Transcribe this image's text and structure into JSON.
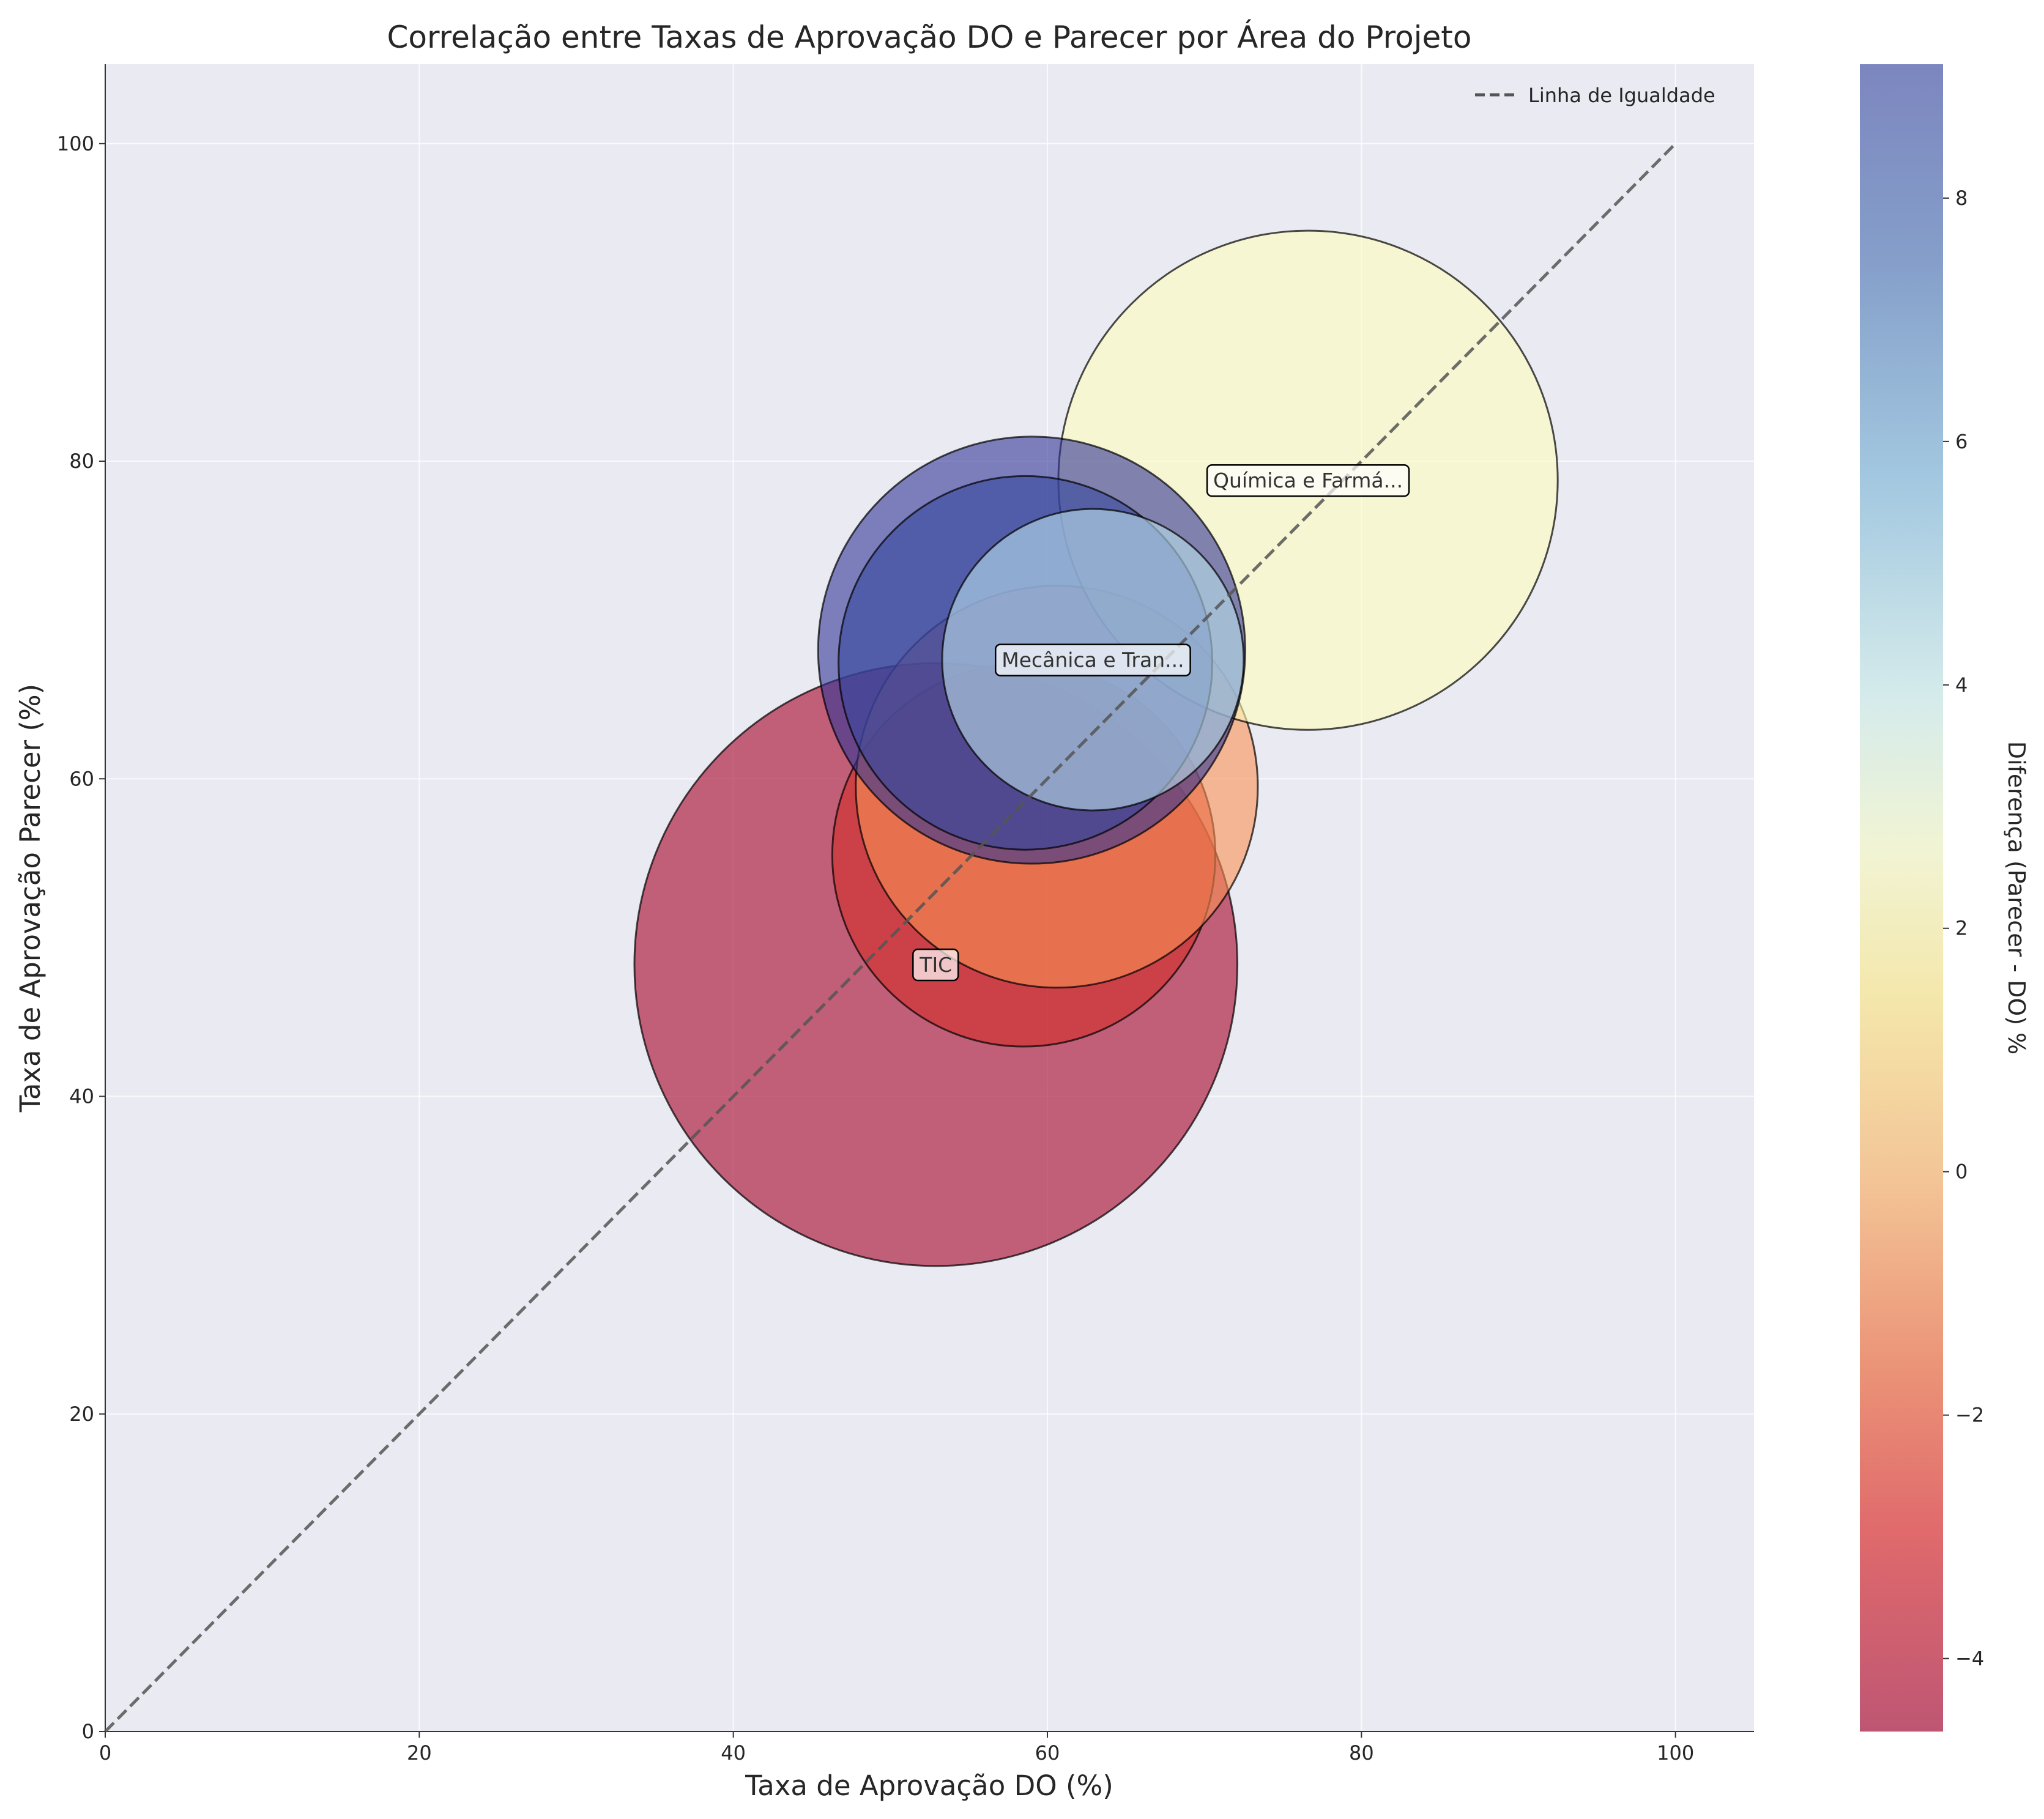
{
  "chart_data": {
    "type": "scatter",
    "title": "Correlação entre Taxas de Aprovação DO e Parecer por Área do Projeto",
    "xlabel": "Taxa de Aprovação DO (%)",
    "ylabel": "Taxa de Aprovação Parecer (%)",
    "xlim": [
      0,
      105
    ],
    "ylim": [
      0,
      105
    ],
    "xticks": [
      "0",
      "20",
      "40",
      "60",
      "80",
      "100"
    ],
    "yticks": [
      "0",
      "20",
      "40",
      "60",
      "80",
      "100"
    ],
    "grid": true,
    "legend": {
      "placement": "top-right",
      "entries": [
        "Linha de Igualdade"
      ]
    },
    "reference_line": {
      "name": "Linha de Igualdade",
      "x": [
        0,
        100
      ],
      "y": [
        0,
        100
      ]
    },
    "colorbar": {
      "label": "Diferença (Parecer - DO) %",
      "min": -4.6,
      "max": 9.1,
      "ticks": [
        "−4",
        "−2",
        "0",
        "2",
        "4",
        "6",
        "8"
      ],
      "tick_values": [
        -4,
        -2,
        0,
        2,
        4,
        6,
        8
      ]
    },
    "points": [
      {
        "x": 52.9,
        "y": 48.3,
        "radius": 19.2,
        "diff": -4.6,
        "label": "TIC"
      },
      {
        "x": 58.5,
        "y": 55.2,
        "radius": 12.2,
        "diff": -3.3,
        "label": ""
      },
      {
        "x": 60.6,
        "y": 59.5,
        "radius": 12.8,
        "diff": -1.1,
        "label": ""
      },
      {
        "x": 76.6,
        "y": 78.8,
        "radius": 15.9,
        "diff": 2.2,
        "label": "Química e Farmá..."
      },
      {
        "x": 59.0,
        "y": 68.1,
        "radius": 13.6,
        "diff": 9.1,
        "label": ""
      },
      {
        "x": 58.6,
        "y": 67.3,
        "radius": 11.9,
        "diff": 8.7,
        "label": ""
      },
      {
        "x": 62.9,
        "y": 67.5,
        "radius": 9.6,
        "diff": 4.6,
        "label": "Mecânica e Tran..."
      }
    ]
  }
}
